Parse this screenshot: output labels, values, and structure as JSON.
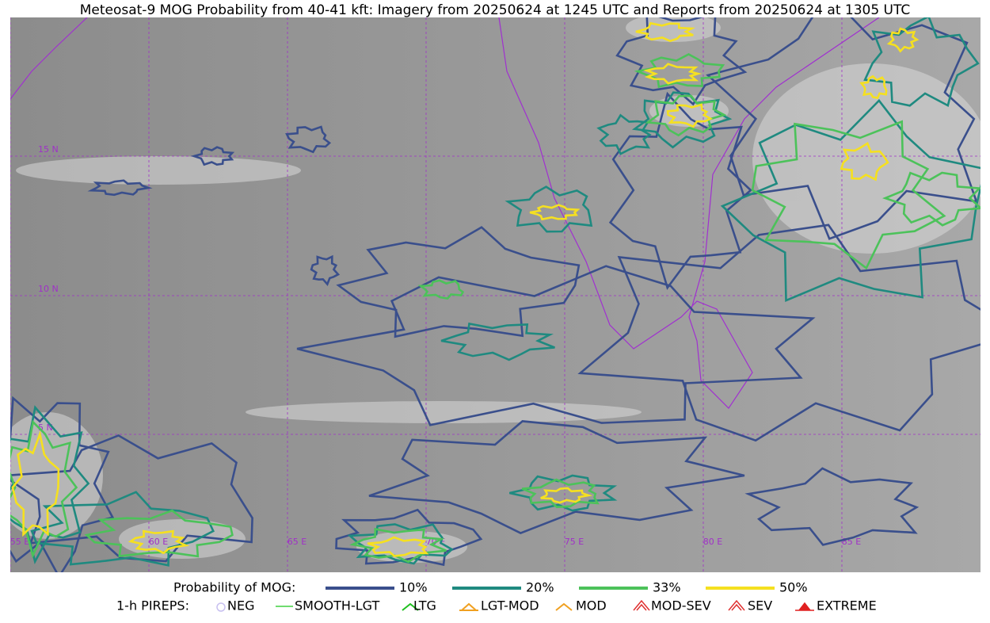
{
  "header": {
    "title": "Meteosat-9 MOG Probability from 40-41 kft: Imagery from 20250624 at 1245 UTC and Reports from 20250624 at 1305 UTC"
  },
  "map": {
    "lat_labels": [
      "15 N",
      "10 N",
      "5 N"
    ],
    "lon_labels": [
      "55 E",
      "60 E",
      "65 E",
      "70 E",
      "75 E",
      "80 E",
      "85 E"
    ]
  },
  "legend": {
    "probability_title": "Probability of MOG:",
    "probability": [
      {
        "label": "10%",
        "color": "#3a4f8c"
      },
      {
        "label": "20%",
        "color": "#1f8a80"
      },
      {
        "label": "33%",
        "color": "#4cc25a"
      },
      {
        "label": "50%",
        "color": "#f5e020"
      }
    ],
    "pireps_title": "1-h PIREPS:",
    "pireps": [
      {
        "label": "NEG",
        "color": "#c8c0f0"
      },
      {
        "label": "SMOOTH-LGT",
        "color": "#40d040"
      },
      {
        "label": "LTG",
        "color": "#20c020"
      },
      {
        "label": "LGT-MOD",
        "color": "#f0a020"
      },
      {
        "label": "MOD",
        "color": "#f0a020"
      },
      {
        "label": "MOD-SEV",
        "color": "#e03030"
      },
      {
        "label": "SEV",
        "color": "#e03030"
      },
      {
        "label": "EXTREME",
        "color": "#e02020"
      }
    ]
  }
}
